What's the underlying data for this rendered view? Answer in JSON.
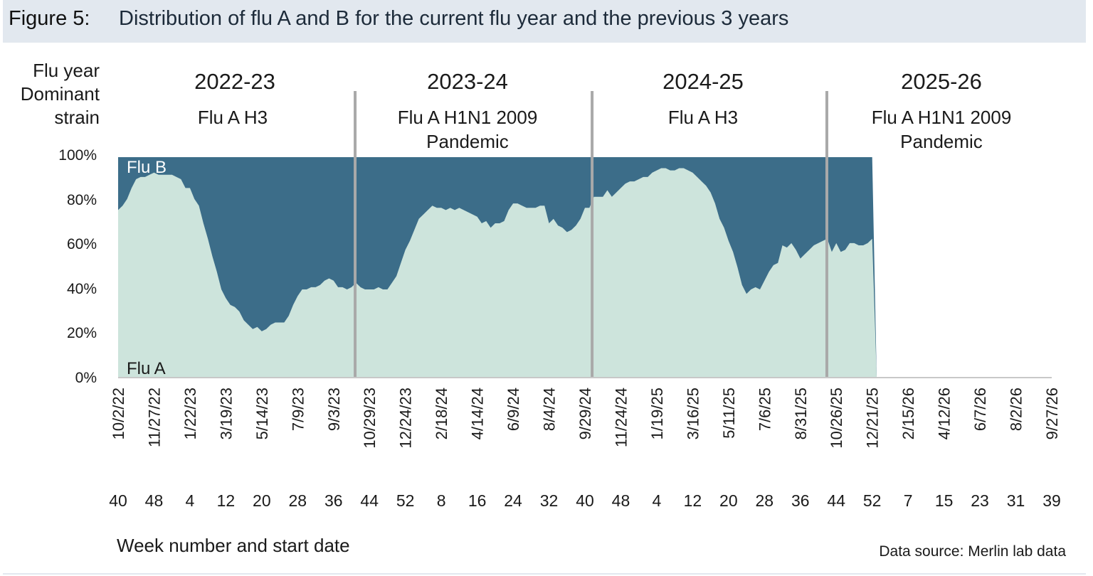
{
  "figure": {
    "number": "Figure 5:",
    "title": "Distribution of flu A and B for the current flu year and the previous 3 years"
  },
  "side_labels": {
    "flu_year": "Flu year",
    "dominant": "Dominant",
    "strain": "strain"
  },
  "flu_years": [
    {
      "year": "2022-23",
      "strain_line1": "Flu A H3",
      "strain_line2": ""
    },
    {
      "year": "2023-24",
      "strain_line1": "Flu A H1N1 2009",
      "strain_line2": "Pandemic"
    },
    {
      "year": "2024-25",
      "strain_line1": "Flu A H3",
      "strain_line2": ""
    },
    {
      "year": "2025-26",
      "strain_line1": "Flu A H1N1 2009",
      "strain_line2": "Pandemic"
    }
  ],
  "xlabel": "Week number and start date",
  "source": "Data source: Merlin lab data",
  "colors": {
    "flu_a": "#cde4dc",
    "flu_b": "#3c6d89",
    "divider": "#a9a9a9",
    "header_bg": "#e2e8ef"
  },
  "chart_data": {
    "type": "area",
    "stacked_percent": true,
    "x_start_date": "10/2/22",
    "x_interval": "weekly",
    "ylim": [
      0,
      100
    ],
    "yticks": [
      "0%",
      "20%",
      "40%",
      "60%",
      "80%",
      "100%"
    ],
    "date_ticks": [
      "10/2/22",
      "11/27/22",
      "1/22/23",
      "3/19/23",
      "5/14/23",
      "7/9/23",
      "9/3/23",
      "10/29/23",
      "12/24/23",
      "2/18/24",
      "4/14/24",
      "6/9/24",
      "8/4/24",
      "9/29/24",
      "11/24/24",
      "1/19/25",
      "3/16/25",
      "5/11/25",
      "7/6/25",
      "8/31/25",
      "10/26/25",
      "12/21/25",
      "2/15/26",
      "4/12/26",
      "6/7/26",
      "8/2/26",
      "9/27/26"
    ],
    "week_ticks": [
      "40",
      "48",
      "4",
      "12",
      "20",
      "28",
      "36",
      "44",
      "52",
      "8",
      "16",
      "24",
      "32",
      "40",
      "48",
      "4",
      "12",
      "20",
      "28",
      "36",
      "44",
      "52",
      "7",
      "15",
      "23",
      "31",
      "39"
    ],
    "series_labels": {
      "flu_b": "Flu B",
      "flu_a": "Flu A"
    },
    "season_dividers_after_week_index": [
      52.8,
      105.6,
      157.9
    ],
    "series": [
      {
        "name": "Flu A",
        "values": [
          76,
          78,
          81,
          86,
          90,
          91,
          91,
          92,
          93,
          92,
          92,
          92,
          92,
          91,
          90,
          86,
          86,
          81,
          78,
          70,
          63,
          55,
          48,
          40,
          36,
          33,
          32,
          30,
          26,
          24,
          22,
          23,
          21,
          22,
          24,
          25,
          25,
          25,
          28,
          33,
          37,
          40,
          40,
          41,
          41,
          42,
          44,
          45,
          44,
          41,
          41,
          40,
          41,
          43,
          41,
          40,
          40,
          40,
          41,
          40,
          40,
          43,
          46,
          52,
          58,
          62,
          67,
          72,
          74,
          76,
          78,
          77,
          77,
          76,
          77,
          76,
          77,
          76,
          75,
          74,
          73,
          70,
          71,
          68,
          70,
          70,
          71,
          76,
          79,
          79,
          78,
          77,
          77,
          77,
          78,
          78,
          70,
          72,
          69,
          68,
          66,
          67,
          69,
          72,
          77,
          77,
          82,
          82,
          82,
          85,
          82,
          84,
          86,
          88,
          89,
          89,
          90,
          91,
          91,
          93,
          94,
          95,
          95,
          94,
          94,
          95,
          95,
          94,
          93,
          91,
          89,
          87,
          84,
          79,
          72,
          68,
          62,
          57,
          50,
          42,
          38,
          40,
          41,
          40,
          44,
          48,
          51,
          52,
          60,
          59,
          61,
          58,
          54,
          56,
          58,
          60,
          61,
          62,
          63,
          57,
          61,
          57,
          58,
          61,
          61,
          60,
          60,
          61,
          63,
          0
        ]
      }
    ]
  }
}
